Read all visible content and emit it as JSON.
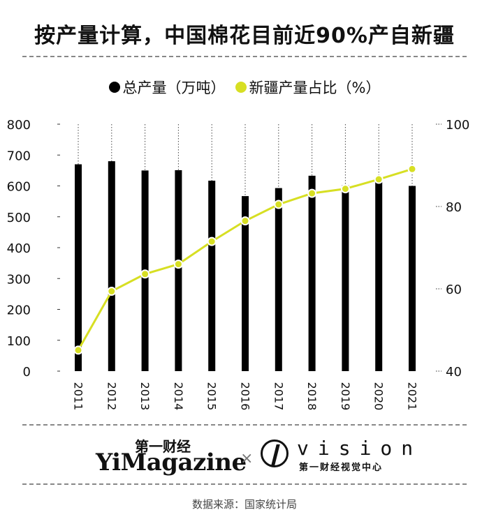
{
  "title": "按产量计算，中国棉花目前近90%产自新疆",
  "source": "数据来源：国家统计局",
  "logos": {
    "yimag_cn": "第一财经",
    "yimag_en": "YiMagazine",
    "cross": "×",
    "vision_word": "vision",
    "vision_cn": "第一财经视觉中心"
  },
  "colors": {
    "bar": "#000000",
    "line": "#d7df23"
  },
  "chart_data": {
    "type": "bar+line",
    "categories": [
      "2011",
      "2012",
      "2013",
      "2014",
      "2015",
      "2016",
      "2017",
      "2018",
      "2019",
      "2020",
      "2021"
    ],
    "series": [
      {
        "name": "总产量（万吨）",
        "type": "bar",
        "axis": "left",
        "values": [
          670,
          680,
          650,
          651,
          617,
          567,
          593,
          633,
          602,
          616,
          600
        ]
      },
      {
        "name": "新疆产量占比（%）",
        "type": "line",
        "axis": "right",
        "values": [
          45.1,
          59.4,
          63.6,
          66.0,
          71.5,
          76.5,
          80.5,
          83.2,
          84.3,
          86.6,
          89.1
        ]
      }
    ],
    "left_axis": {
      "range": [
        0,
        800
      ],
      "ticks": [
        0,
        100,
        200,
        300,
        400,
        500,
        600,
        700,
        800
      ]
    },
    "right_axis": {
      "range": [
        40,
        100
      ],
      "ticks": [
        40,
        60,
        80,
        100
      ]
    },
    "grid": "vertical dotted lines",
    "legend": "top-center"
  }
}
